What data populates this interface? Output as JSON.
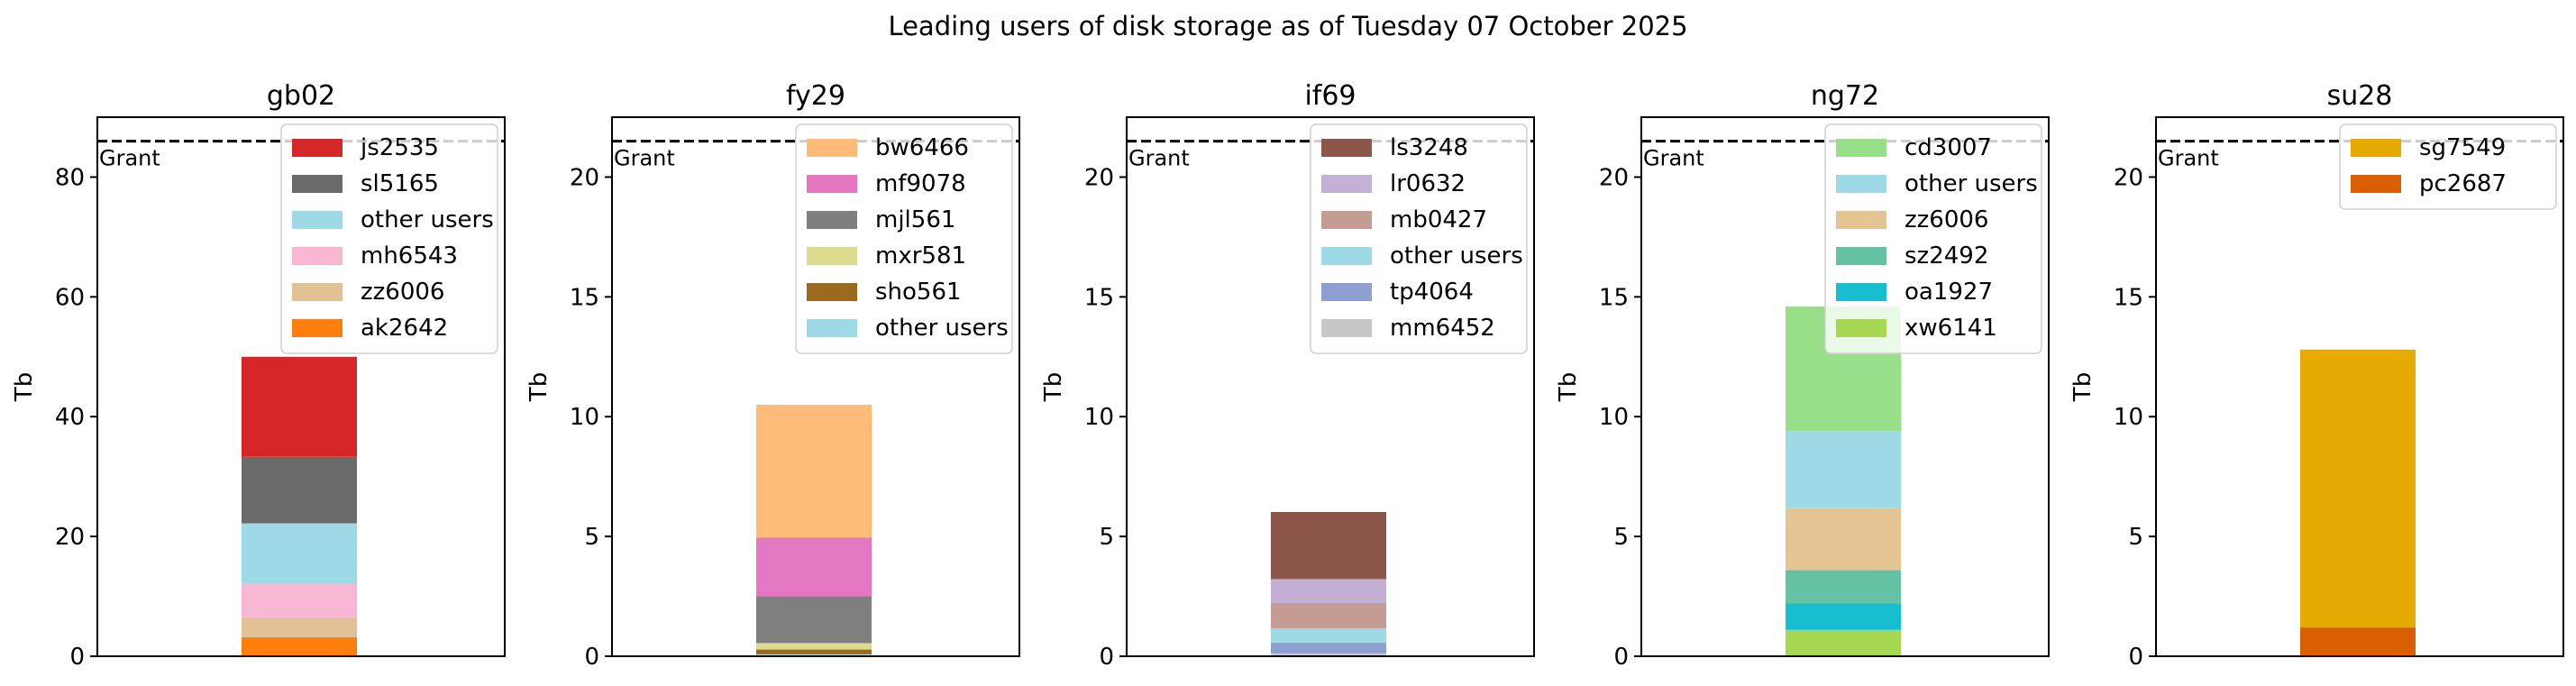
{
  "suptitle": "Leading users of disk storage as of  Tuesday 07 October 2025",
  "chart_data": [
    {
      "type": "bar",
      "stacked": true,
      "title": "gb02",
      "ylabel": "Tb",
      "ylim": [
        0,
        90
      ],
      "yticks": [
        0,
        20,
        40,
        60,
        80
      ],
      "grant": {
        "label": "Grant",
        "value": 86
      },
      "legend_loc": "upper-right",
      "series": [
        {
          "name": "ak2642",
          "value": 3.2,
          "color": "#ff7f0e"
        },
        {
          "name": "zz6006",
          "value": 3.3,
          "color": "#e2c295"
        },
        {
          "name": "mh6543",
          "value": 5.7,
          "color": "#f7b6d2"
        },
        {
          "name": "other users",
          "value": 10.0,
          "color": "#9edae5"
        },
        {
          "name": "sl5165",
          "value": 11.1,
          "color": "#6a6a6a"
        },
        {
          "name": "js2535",
          "value": 16.7,
          "color": "#d62728"
        }
      ]
    },
    {
      "type": "bar",
      "stacked": true,
      "title": "fy29",
      "ylabel": "Tb",
      "ylim": [
        0,
        22.5
      ],
      "yticks": [
        0,
        5,
        10,
        15,
        20
      ],
      "grant": {
        "label": "Grant",
        "value": 21.5
      },
      "legend_loc": "upper-right",
      "series": [
        {
          "name": "other users",
          "value": 0.08,
          "color": "#9edae5"
        },
        {
          "name": "sho561",
          "value": 0.2,
          "color": "#9c6a1f"
        },
        {
          "name": "mxr581",
          "value": 0.27,
          "color": "#dbdb8d"
        },
        {
          "name": "mjl561",
          "value": 1.95,
          "color": "#7f7f7f"
        },
        {
          "name": "mf9078",
          "value": 2.45,
          "color": "#e377c2"
        },
        {
          "name": "bw6466",
          "value": 5.55,
          "color": "#ffbb78"
        }
      ]
    },
    {
      "type": "bar",
      "stacked": true,
      "title": "if69",
      "ylabel": "Tb",
      "ylim": [
        0,
        22.5
      ],
      "yticks": [
        0,
        5,
        10,
        15,
        20
      ],
      "grant": {
        "label": "Grant",
        "value": 21.5
      },
      "legend_loc": "upper-right",
      "series": [
        {
          "name": "mm6452",
          "value": 0.12,
          "color": "#c7c7c7"
        },
        {
          "name": "tp4064",
          "value": 0.45,
          "color": "#8c9fd0"
        },
        {
          "name": "other users",
          "value": 0.6,
          "color": "#9edae5"
        },
        {
          "name": "mb0427",
          "value": 1.05,
          "color": "#c49c94"
        },
        {
          "name": "lr0632",
          "value": 1.0,
          "color": "#c5b0d5"
        },
        {
          "name": "ls3248",
          "value": 2.8,
          "color": "#8c564b"
        }
      ]
    },
    {
      "type": "bar",
      "stacked": true,
      "title": "ng72",
      "ylabel": "Tb",
      "ylim": [
        0,
        22.5
      ],
      "yticks": [
        0,
        5,
        10,
        15,
        20
      ],
      "grant": {
        "label": "Grant",
        "value": 21.5
      },
      "legend_loc": "upper-right",
      "series": [
        {
          "name": "xw6141",
          "value": 1.1,
          "color": "#a6d854"
        },
        {
          "name": "oa1927",
          "value": 1.1,
          "color": "#17becf"
        },
        {
          "name": "sz2492",
          "value": 1.4,
          "color": "#66c2a5"
        },
        {
          "name": "zz6006",
          "value": 2.6,
          "color": "#e5c494"
        },
        {
          "name": "other users",
          "value": 3.2,
          "color": "#9edae5"
        },
        {
          "name": "cd3007",
          "value": 5.2,
          "color": "#98df8a"
        }
      ]
    },
    {
      "type": "bar",
      "stacked": true,
      "title": "su28",
      "ylabel": "Tb",
      "ylim": [
        0,
        22.5
      ],
      "yticks": [
        0,
        5,
        10,
        15,
        20
      ],
      "grant": {
        "label": "Grant",
        "value": 21.5
      },
      "legend_loc": "upper-right",
      "series": [
        {
          "name": "pc2687",
          "value": 1.2,
          "color": "#d95f02"
        },
        {
          "name": "sg7549",
          "value": 11.6,
          "color": "#e6ab02"
        }
      ]
    }
  ]
}
